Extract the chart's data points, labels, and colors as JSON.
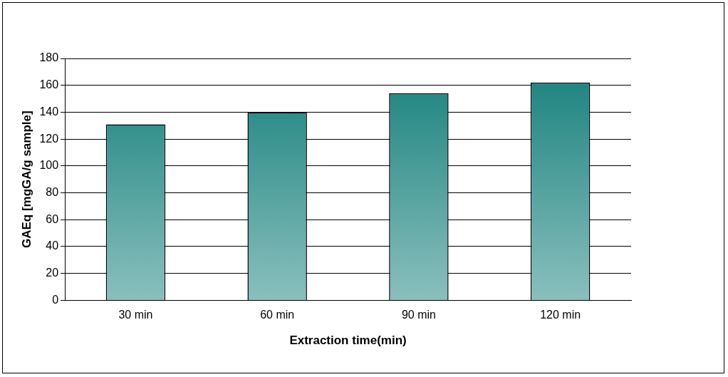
{
  "chart_data": {
    "type": "bar",
    "xlabel": "Extraction time(min)",
    "ylabel": "GAEq [mgGA/g sample]",
    "categories": [
      "30 min",
      "60 min",
      "90 min",
      "120 min"
    ],
    "values": [
      131,
      140,
      154,
      162
    ],
    "color": "#157f7b",
    "ylim": [
      0,
      180
    ],
    "yticks": [
      0,
      20,
      40,
      60,
      80,
      100,
      120,
      140,
      160,
      180
    ],
    "grid": "y",
    "legend": false
  }
}
